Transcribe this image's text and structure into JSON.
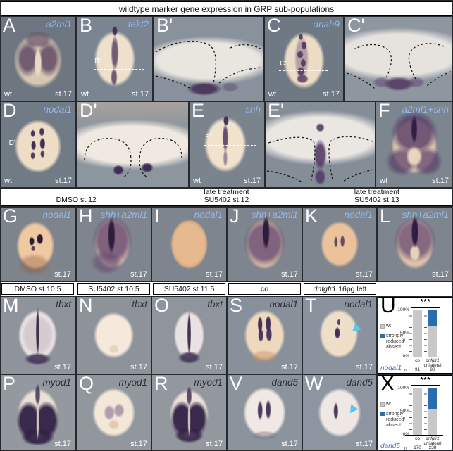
{
  "title": "wildtype marker gene expression in GRP sub-populations",
  "mid_headers": [
    {
      "line1": "",
      "line2": "DMSO st.12"
    },
    {
      "line1": "late treatment",
      "line2": "SU5402 st.12"
    },
    {
      "line1": "late treatment",
      "line2": "SU5402 st.13"
    }
  ],
  "bottom_headers": [
    {
      "italic": "",
      "text": "DMSO st.10.5"
    },
    {
      "italic": "",
      "text": "SU5402 st.10.5"
    },
    {
      "italic": "",
      "text": "SU5402 st.11.5"
    },
    {
      "italic": "",
      "text": "co"
    },
    {
      "italic": "dnfgfr1",
      "text": " 16pg left"
    }
  ],
  "panels": {
    "A": {
      "letter": "A",
      "gene": "a2ml1",
      "wt": "wt",
      "stage": "st.17"
    },
    "B": {
      "letter": "B",
      "gene": "tekt2",
      "section": "B'",
      "wt": "wt",
      "stage": "st.17"
    },
    "Bp": {
      "letter": "B'"
    },
    "C": {
      "letter": "C",
      "gene": "dnah9",
      "section": "C'",
      "wt": "wt",
      "stage": "st.17"
    },
    "Cp": {
      "letter": "C'"
    },
    "D": {
      "letter": "D",
      "gene": "nodal1",
      "section": "D'",
      "wt": "wt",
      "stage": "st.17"
    },
    "Dp": {
      "letter": "D'"
    },
    "E": {
      "letter": "E",
      "gene": "shh",
      "section": "E'",
      "wt": "wt",
      "stage": "st.17"
    },
    "Ep": {
      "letter": "E'"
    },
    "F": {
      "letter": "F",
      "gene": "a2ml1+shh",
      "wt": "wt",
      "stage": "st.17"
    },
    "G": {
      "letter": "G",
      "gene": "nodal1",
      "stage": "st.17"
    },
    "H": {
      "letter": "H",
      "gene": "shh+a2ml1",
      "stage": "st.17"
    },
    "I": {
      "letter": "I",
      "gene": "nodal1",
      "stage": "st.17"
    },
    "J": {
      "letter": "J",
      "gene": "shh+a2ml1",
      "stage": "st.17"
    },
    "K": {
      "letter": "K",
      "gene": "nodal1",
      "stage": "st.17"
    },
    "L": {
      "letter": "L",
      "gene": "shh+a2ml1",
      "stage": "st.17"
    },
    "M": {
      "letter": "M",
      "gene": "tbxt",
      "stage": "st.17"
    },
    "N": {
      "letter": "N",
      "gene": "tbxt",
      "stage": "st.17"
    },
    "O": {
      "letter": "O",
      "gene": "tbxt",
      "stage": "st.17"
    },
    "S": {
      "letter": "S",
      "gene": "nodal1",
      "stage": "st.17"
    },
    "T": {
      "letter": "T",
      "gene": "nodal1",
      "stage": "st.17"
    },
    "P": {
      "letter": "P",
      "gene": "myod1",
      "stage": "st.17"
    },
    "Q": {
      "letter": "Q",
      "gene": "myod1",
      "stage": "st.17"
    },
    "R": {
      "letter": "R",
      "gene": "myod1",
      "stage": "st.17"
    },
    "V": {
      "letter": "V",
      "gene": "dand5",
      "stage": "st.17"
    },
    "W": {
      "letter": "W",
      "gene": "dand5",
      "stage": "st.17"
    }
  },
  "colors": {
    "gene_label_blue": "#92b9ec",
    "gene_label_dark": "#2e2e36",
    "chart_blue": "#2b6cb0",
    "chart_gray": "#c8c8c8",
    "arrowhead_cyan": "#58c8ec"
  },
  "chart_data": [
    {
      "id": "U",
      "letter": "U",
      "type": "stacked-bar-percent",
      "significance": "***",
      "categories": [
        "co",
        "dnfgfr1 unilateral"
      ],
      "series": [
        {
          "name": "wt",
          "color": "#c8c8c8",
          "values": [
            100,
            65
          ]
        },
        {
          "name": "strongly reduced/absent",
          "color": "#2b6cb0",
          "values": [
            0,
            35
          ]
        }
      ],
      "yticks": [
        "100%",
        "50%",
        "0%"
      ],
      "ylim": [
        0,
        100
      ],
      "gene": "nodal1",
      "n_label": "n",
      "n_values": [
        91,
        98
      ],
      "xlabel_display": {
        "c1": "co",
        "c2_line1": "dnfgfr1",
        "c2_line2": "unilateral"
      },
      "legend_display": {
        "l1": "wt",
        "l2a": "strongly",
        "l2b": "reduced/",
        "l2c": "absent"
      }
    },
    {
      "id": "X",
      "letter": "X",
      "type": "stacked-bar-percent",
      "significance": "***",
      "categories": [
        "co",
        "dnfgfr1 unilateral"
      ],
      "series": [
        {
          "name": "wt",
          "color": "#c8c8c8",
          "values": [
            100,
            55
          ]
        },
        {
          "name": "strongly reduced/absent",
          "color": "#2b6cb0",
          "values": [
            0,
            45
          ]
        }
      ],
      "yticks": [
        "100%",
        "50%",
        "0%"
      ],
      "ylim": [
        0,
        100
      ],
      "gene": "dand5",
      "n_label": "n",
      "n_values": [
        170,
        238
      ],
      "xlabel_display": {
        "c1": "co",
        "c2_line1": "dnfgfr1",
        "c2_line2": "unilateral"
      },
      "legend_display": {
        "l1": "wt",
        "l2a": "strongly",
        "l2b": "reduced/",
        "l2c": "absent"
      }
    }
  ]
}
